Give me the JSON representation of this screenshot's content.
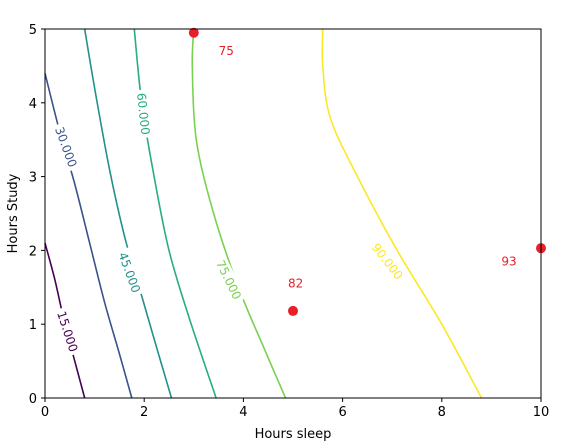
{
  "chart_data": {
    "type": "contour",
    "xlabel": "Hours sleep",
    "ylabel": "Hours Study",
    "xlim": [
      0,
      10
    ],
    "ylim": [
      0,
      5
    ],
    "xticks": [
      0,
      2,
      4,
      6,
      8,
      10
    ],
    "yticks": [
      0,
      1,
      2,
      3,
      4,
      5
    ],
    "grid": false,
    "contours": [
      {
        "level": "15.000",
        "color": "#440154",
        "points": [
          [
            0,
            2.1
          ],
          [
            0.2,
            1.6
          ],
          [
            0.4,
            1.0
          ],
          [
            0.6,
            0.5
          ],
          [
            0.8,
            0
          ]
        ],
        "label_at": [
          0.45,
          0.9
        ],
        "label_angle": 72
      },
      {
        "level": "30.000",
        "color": "#3b528b",
        "points": [
          [
            0,
            4.4
          ],
          [
            0.3,
            3.6
          ],
          [
            0.6,
            2.9
          ],
          [
            0.9,
            2.1
          ],
          [
            1.2,
            1.3
          ],
          [
            1.5,
            0.6
          ],
          [
            1.75,
            0
          ]
        ],
        "label_at": [
          0.42,
          3.4
        ],
        "label_angle": 70
      },
      {
        "level": "45.000",
        "color": "#21918c",
        "points": [
          [
            0.8,
            5
          ],
          [
            1.0,
            4.2
          ],
          [
            1.3,
            3.1
          ],
          [
            1.6,
            2.2
          ],
          [
            1.9,
            1.5
          ],
          [
            2.2,
            0.8
          ],
          [
            2.55,
            0
          ]
        ],
        "label_at": [
          1.7,
          1.7
        ],
        "label_angle": 70
      },
      {
        "level": "60.000",
        "color": "#27ad81",
        "points": [
          [
            1.8,
            5
          ],
          [
            1.95,
            4.0
          ],
          [
            2.2,
            3.0
          ],
          [
            2.5,
            2.0
          ],
          [
            2.9,
            1.1
          ],
          [
            3.45,
            0
          ]
        ],
        "label_at": [
          1.98,
          3.85
        ],
        "label_angle": 84
      },
      {
        "level": "75.000",
        "color": "#7ad151",
        "points": [
          [
            3.0,
            5
          ],
          [
            2.97,
            4.5
          ],
          [
            3.05,
            3.5
          ],
          [
            3.4,
            2.5
          ],
          [
            3.9,
            1.5
          ],
          [
            4.4,
            0.7
          ],
          [
            4.85,
            0
          ]
        ],
        "label_at": [
          3.7,
          1.6
        ],
        "label_angle": 64
      },
      {
        "level": "90.000",
        "color": "#fde725",
        "points": [
          [
            5.6,
            5
          ],
          [
            5.6,
            4.5
          ],
          [
            5.75,
            3.8
          ],
          [
            6.3,
            3.0
          ],
          [
            7.1,
            2.0
          ],
          [
            8.0,
            1.0
          ],
          [
            8.8,
            0
          ]
        ],
        "label_at": [
          6.9,
          1.85
        ],
        "label_angle": 52
      }
    ],
    "points": [
      {
        "x": 3,
        "y": 4.95,
        "label": "75",
        "label_at": [
          3.5,
          4.7
        ]
      },
      {
        "x": 5,
        "y": 1.18,
        "label": "82",
        "label_at": [
          4.9,
          1.55
        ]
      },
      {
        "x": 10,
        "y": 2.03,
        "label": "93",
        "label_at": [
          9.2,
          1.85
        ]
      }
    ],
    "point_color": "#e8202a"
  }
}
